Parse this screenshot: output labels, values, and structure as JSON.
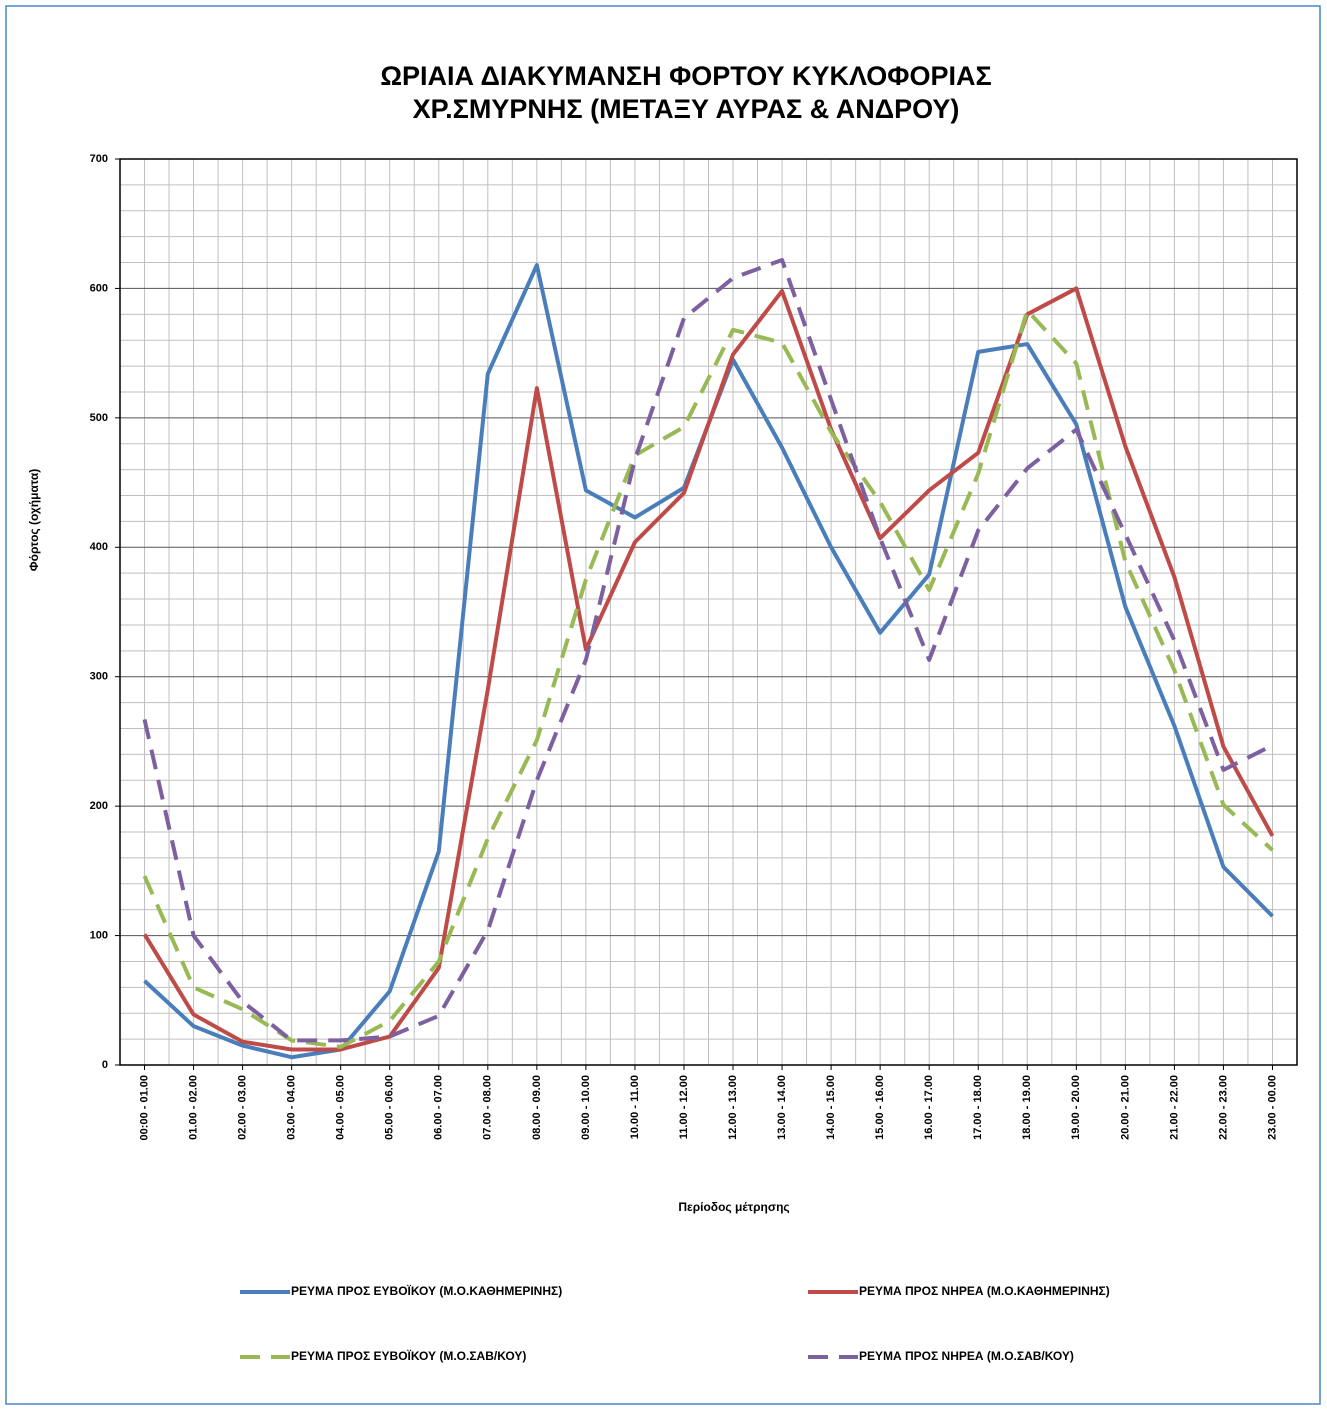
{
  "chart_data": {
    "type": "line",
    "title": [
      "ΩΡΙΑΙΑ ΔΙΑΚΥΜΑΝΣΗ ΦΟΡΤΟΥ ΚΥΚΛΟΦΟΡΙΑΣ",
      "ΧΡ.ΣΜΥΡΝΗΣ (ΜΕΤΑΞΥ ΑΥΡΑΣ & ΑΝΔΡΟΥ)"
    ],
    "y_label": "Φόρτος (οχήματα)",
    "x_label": "Περίοδος μέτρησης",
    "categories": [
      "00:00 - 01.00",
      "01.00 - 02.00",
      "02.00 - 03.00",
      "03.00 - 04.00",
      "04.00 - 05.00",
      "05.00 - 06.00",
      "06.00 - 07.00",
      "07.00 - 08.00",
      "08.00 - 09.00",
      "09.00 - 10.00",
      "10.00 - 11.00",
      "11.00 - 12.00",
      "12.00 - 13.00",
      "13.00 - 14.00",
      "14.00 - 15.00",
      "15.00 - 16.00",
      "16.00 - 17.00",
      "17.00 - 18.00",
      "18.00 - 19.00",
      "19.00 - 20.00",
      "20.00 - 21.00",
      "21.00 - 22.00",
      "22.00 - 23.00",
      "23.00 - 00.00"
    ],
    "series": [
      {
        "name": "ΡΕΥΜΑ ΠΡΟΣ ΕΥΒΟΪΚΟΥ (Μ.Ο.ΚΑΘΗΜΕΡΙΝΗΣ)",
        "color": "#4a7ebb",
        "dashed": false,
        "values": [
          65,
          30,
          15,
          6,
          12,
          57,
          165,
          534,
          618,
          444,
          423,
          446,
          545,
          477,
          400,
          334,
          379,
          551,
          557,
          495,
          354,
          262,
          153,
          115
        ]
      },
      {
        "name": "ΡΕΥΜΑ ΠΡΟΣ ΝΗΡΕΑ (Μ.Ο.ΚΑΘΗΜΕΡΙΝΗΣ)",
        "color": "#be4b48",
        "dashed": false,
        "values": [
          101,
          39,
          18,
          12,
          12,
          22,
          75,
          290,
          523,
          321,
          404,
          442,
          549,
          598,
          491,
          407,
          444,
          473,
          580,
          600,
          478,
          377,
          246,
          177
        ]
      },
      {
        "name": "ΡΕΥΜΑ ΠΡΟΣ ΕΥΒΟΪΚΟΥ (Μ.Ο.ΣΑΒ/ΚΟΥ)",
        "color": "#98b954",
        "dashed": true,
        "values": [
          146,
          60,
          43,
          19,
          14,
          34,
          80,
          175,
          251,
          375,
          471,
          493,
          568,
          558,
          489,
          435,
          367,
          457,
          583,
          542,
          389,
          305,
          201,
          166
        ]
      },
      {
        "name": "ΡΕΥΜΑ ΠΡΟΣ ΝΗΡΕΑ (Μ.Ο.ΣΑΒ/ΚΟΥ)",
        "color": "#7d60a0",
        "dashed": true,
        "values": [
          267,
          100,
          49,
          19,
          19,
          22,
          38,
          104,
          220,
          313,
          468,
          577,
          608,
          622,
          514,
          407,
          313,
          413,
          461,
          491,
          410,
          328,
          228,
          247
        ]
      }
    ],
    "ylim": [
      0,
      700
    ],
    "yticks": [
      0,
      100,
      200,
      300,
      400,
      500,
      600,
      700
    ],
    "y_minor_ticks": [
      20,
      40,
      60,
      80,
      120,
      140,
      160,
      180,
      220,
      240,
      260,
      280,
      320,
      340,
      360,
      380,
      420,
      440,
      460,
      480,
      520,
      540,
      560,
      580,
      620,
      640,
      660,
      680
    ],
    "grid": true
  }
}
